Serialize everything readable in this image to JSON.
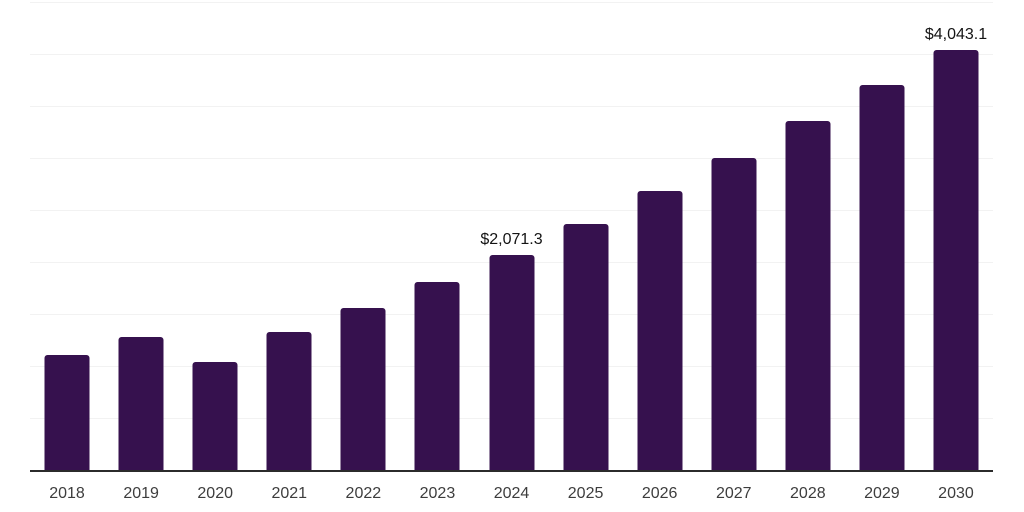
{
  "chart_data": {
    "type": "bar",
    "title": "",
    "xlabel": "",
    "ylabel": "",
    "categories": [
      "2018",
      "2019",
      "2020",
      "2021",
      "2022",
      "2023",
      "2024",
      "2025",
      "2026",
      "2027",
      "2028",
      "2029",
      "2030"
    ],
    "values": [
      1105,
      1280,
      1040,
      1325,
      1560,
      1805,
      2071.3,
      2365,
      2680,
      3005,
      3355,
      3700,
      4043.1
    ],
    "annotations": [
      {
        "category": "2024",
        "text": "$2,071.3"
      },
      {
        "category": "2030",
        "text": "$4,043.1"
      }
    ],
    "ylim": [
      0,
      4500
    ],
    "ytick_step": 500,
    "yticks_labeled": false,
    "grid": "horizontal",
    "legend": "none",
    "bar_color": "#36114E",
    "background_color": "#FFFFFF",
    "gridline_color": "#F2F2F2",
    "axis_line_color": "#2B2B2B",
    "tick_label_color": "#3D3D3D",
    "annotation_color": "#141414"
  }
}
